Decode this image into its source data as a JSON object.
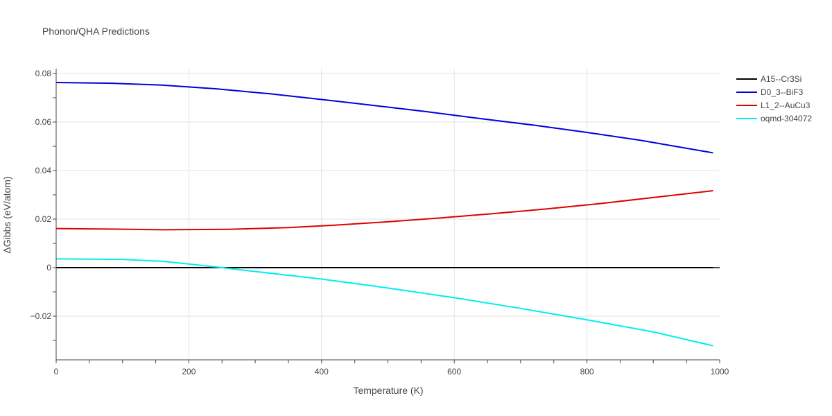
{
  "chart_data": {
    "type": "line",
    "title": "Phonon/QHA Predictions",
    "xlabel": "Temperature (K)",
    "ylabel": "ΔGibbs (eV/atom)",
    "xlim": [
      0,
      1000
    ],
    "ylim": [
      -0.038,
      0.082
    ],
    "xticks": [
      0,
      200,
      400,
      600,
      800,
      1000
    ],
    "xtick_labels": [
      "0",
      "200",
      "400",
      "600",
      "800",
      "1000"
    ],
    "yticks": [
      -0.02,
      0,
      0.02,
      0.04,
      0.06,
      0.08
    ],
    "ytick_labels": [
      "−0.02",
      "0",
      "0.02",
      "0.04",
      "0.06",
      "0.08"
    ],
    "grid": true,
    "legend_position": "top-right",
    "series": [
      {
        "name": "A15--Cr3Si",
        "color": "#000000",
        "x": [
          0,
          100,
          200,
          300,
          400,
          500,
          600,
          700,
          800,
          900,
          990
        ],
        "y": [
          0,
          0,
          0,
          0,
          0,
          0,
          0,
          0,
          0,
          0,
          0
        ]
      },
      {
        "name": "D0_3--BiF3",
        "color": "#0000dd",
        "x": [
          0,
          80,
          160,
          240,
          320,
          400,
          480,
          560,
          640,
          720,
          800,
          880,
          990
        ],
        "y": [
          0.0763,
          0.076,
          0.0752,
          0.0737,
          0.0717,
          0.0693,
          0.0668,
          0.0642,
          0.0614,
          0.0587,
          0.0557,
          0.0525,
          0.0473
        ]
      },
      {
        "name": "L1_2--AuCu3",
        "color": "#dd0000",
        "x": [
          0,
          80,
          160,
          260,
          350,
          420,
          500,
          580,
          660,
          740,
          820,
          900,
          990
        ],
        "y": [
          0.0161,
          0.0159,
          0.0156,
          0.0158,
          0.0165,
          0.0175,
          0.0189,
          0.0205,
          0.0223,
          0.0242,
          0.0264,
          0.0289,
          0.0317
        ]
      },
      {
        "name": "oqmd-304072",
        "color": "#00eeee",
        "x": [
          0,
          100,
          160,
          200,
          250,
          300,
          400,
          500,
          600,
          700,
          800,
          900,
          990
        ],
        "y": [
          0.0036,
          0.0034,
          0.0026,
          0.0015,
          0.0,
          -0.0016,
          -0.0047,
          -0.0084,
          -0.0124,
          -0.0168,
          -0.0215,
          -0.0265,
          -0.0322
        ]
      }
    ]
  }
}
